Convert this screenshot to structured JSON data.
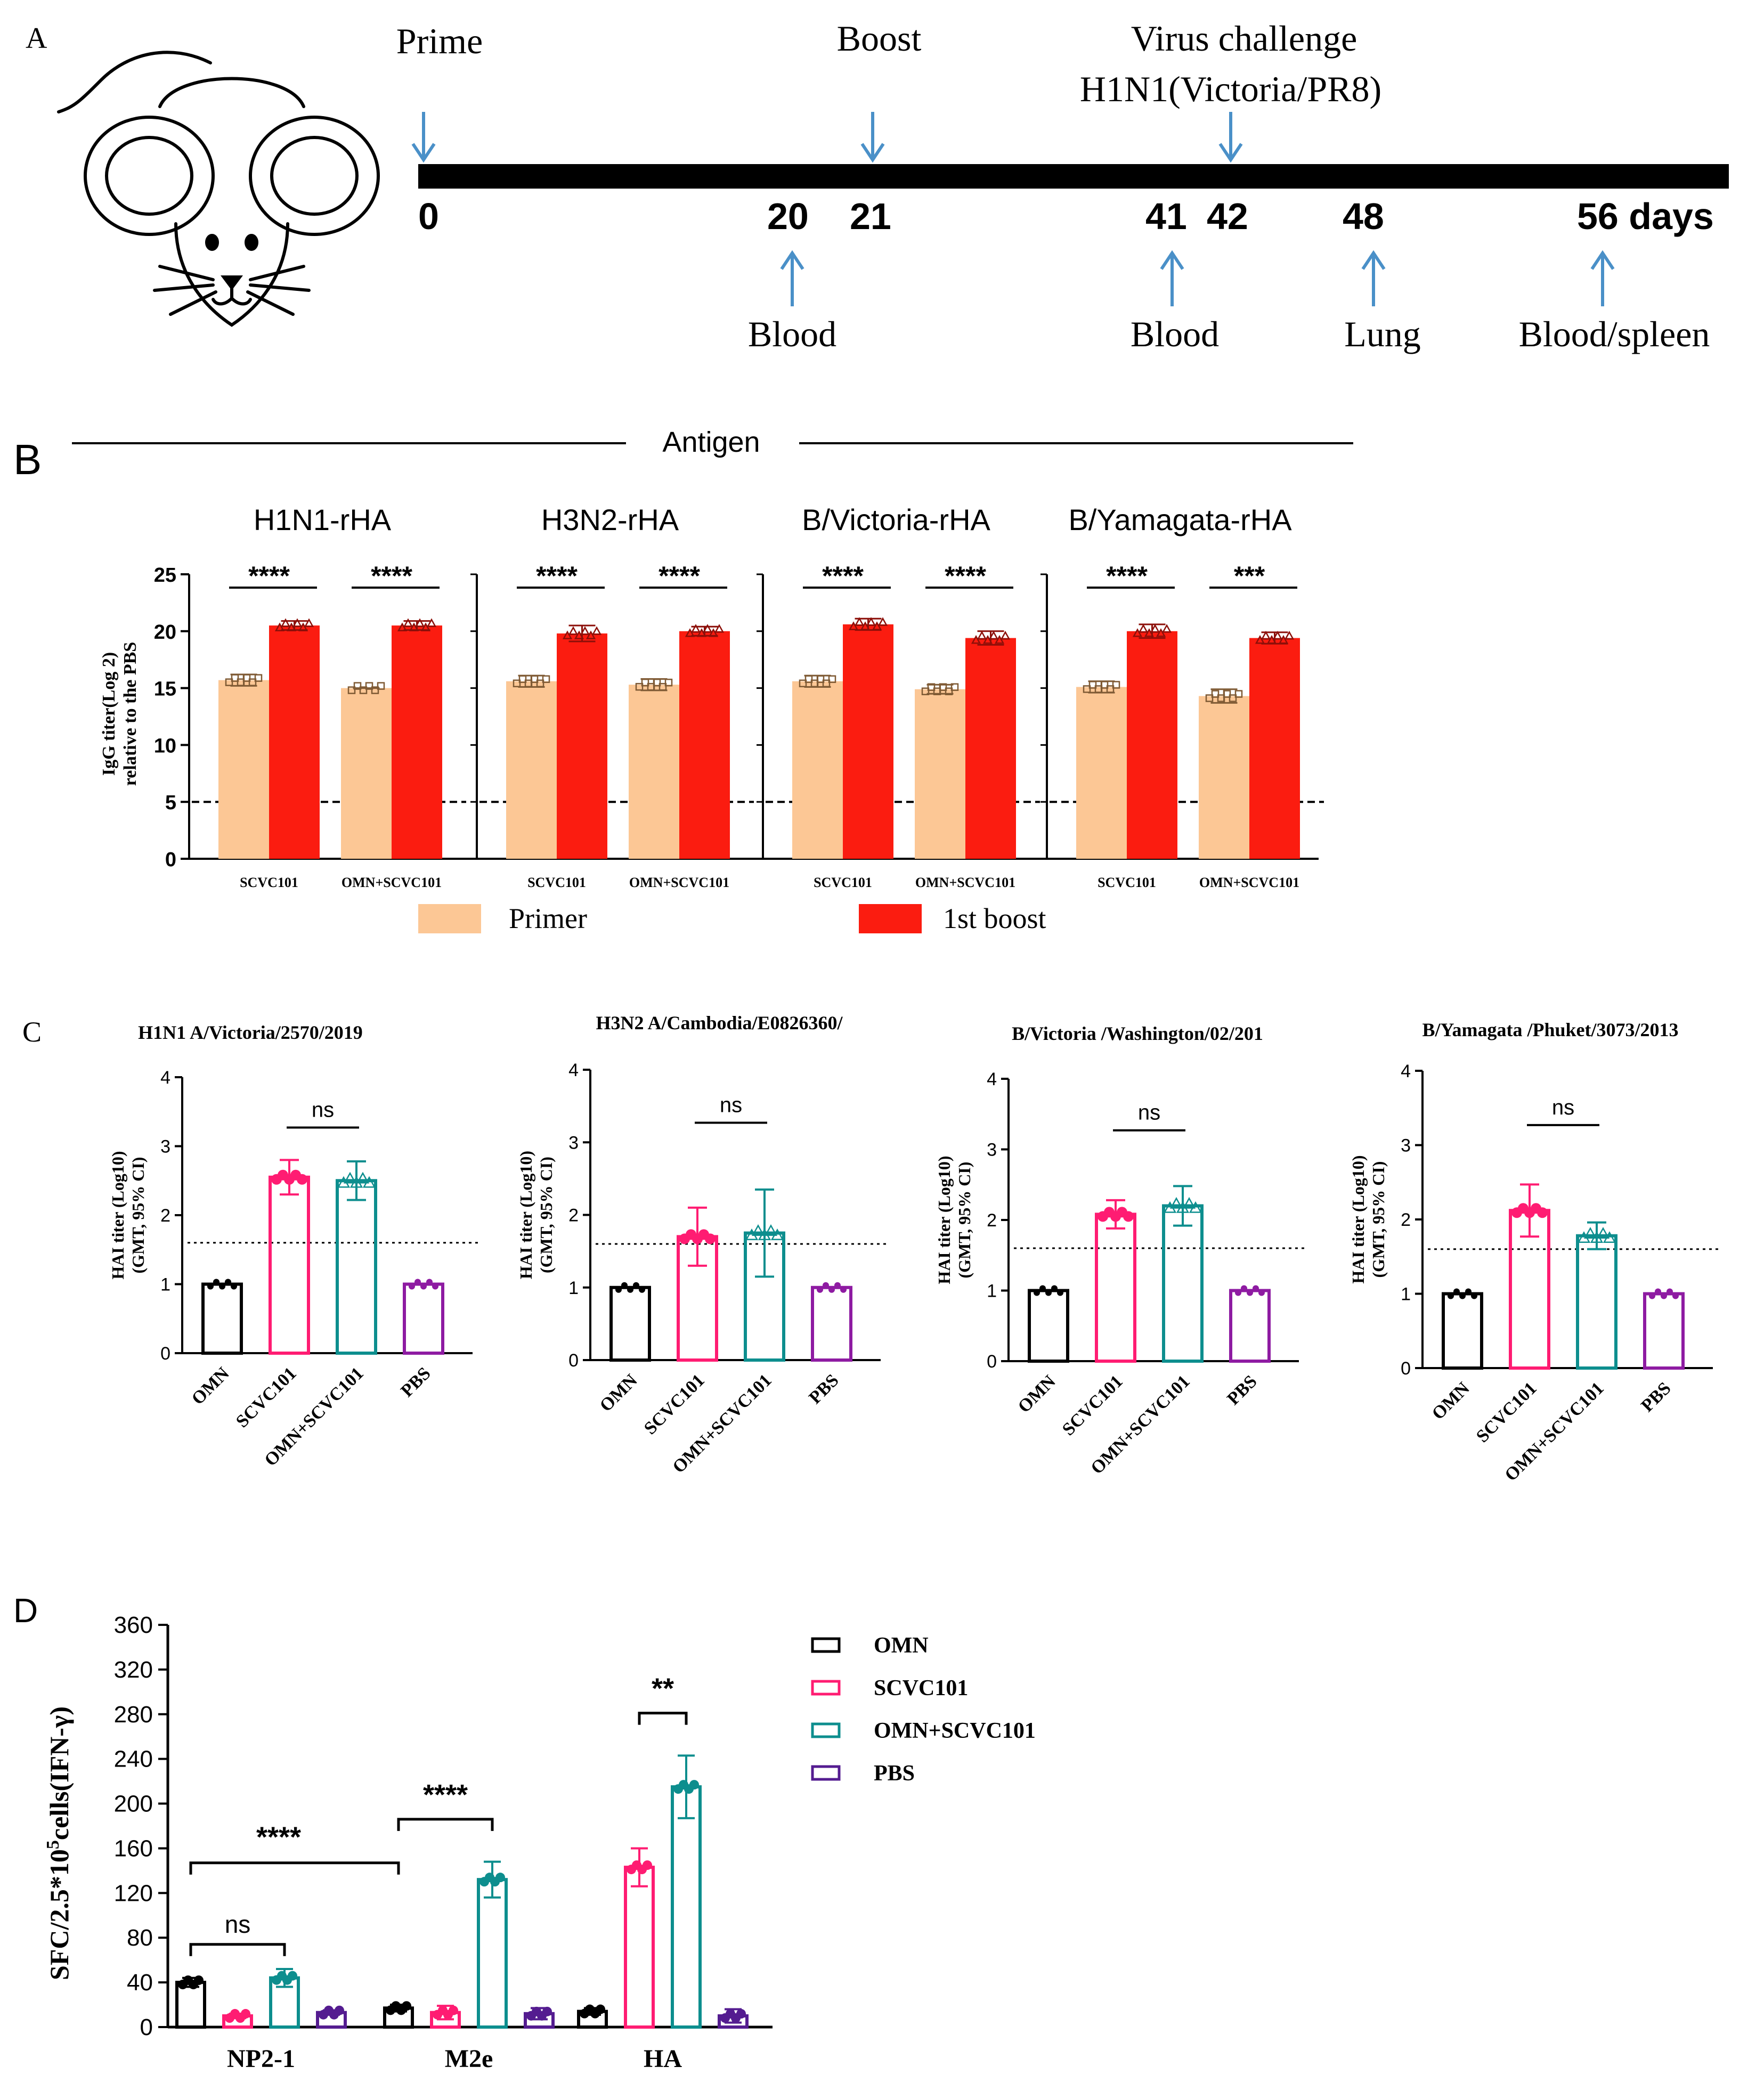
{
  "panel_a": {
    "label": "A",
    "events": {
      "prime": "Prime",
      "boost": "Boost",
      "challenge_line1": "Virus challenge",
      "challenge_line2": "H1N1(Victoria/PR8)"
    },
    "days": [
      "0",
      "20",
      "21",
      "41",
      "42",
      "48",
      "56 days"
    ],
    "samples": {
      "blood1": "Blood",
      "blood2": "Blood",
      "lung": "Lung",
      "blood_spleen": "Blood/spleen"
    }
  },
  "panel_b": {
    "label": "B",
    "header": "Antigen",
    "legend": {
      "primer": "Primer",
      "boost": "1st boost"
    },
    "colors": {
      "primer": "#fcc795",
      "boost": "#fb1c10",
      "primer_pt": "#7f5a34",
      "boost_pt": "#8c0f09"
    }
  },
  "panel_c": {
    "label": "C",
    "colors": {
      "omn": "#000000",
      "scvc": "#ff1c72",
      "combo": "#0d8e8e",
      "pbs": "#8e1ba2"
    }
  },
  "panel_d": {
    "label": "D",
    "legend": [
      "OMN",
      "SCVC101",
      "OMN+SCVC101",
      "PBS"
    ],
    "colors": [
      "#000000",
      "#ff1c72",
      "#0d8e8e",
      "#541c90"
    ]
  },
  "chart_data": [
    {
      "id": "B",
      "type": "bar",
      "ylabel_line1": "IgG titer(Log 2)",
      "ylabel_line2": "relative to the PBS",
      "ylim": [
        0,
        25
      ],
      "yticks": [
        "0",
        "5",
        "10",
        "15",
        "20",
        "25"
      ],
      "reference_line": 5,
      "series_names": [
        "Primer",
        "1st boost"
      ],
      "subplots": [
        {
          "title": "H1N1-rHA",
          "categories": [
            "SCVC101",
            "OMN+SCVC101"
          ],
          "primer": [
            15.7,
            15.0
          ],
          "boost": [
            20.5,
            20.5
          ],
          "primer_err": [
            0.5,
            0.0
          ],
          "boost_err": [
            0.4,
            0.4
          ],
          "stars": [
            "****",
            "****"
          ]
        },
        {
          "title": "H3N2-rHA",
          "categories": [
            "SCVC101",
            "OMN+SCVC101"
          ],
          "primer": [
            15.6,
            15.3
          ],
          "boost": [
            19.8,
            20.0
          ],
          "primer_err": [
            0.5,
            0.5
          ],
          "boost_err": [
            0.7,
            0.4
          ],
          "stars": [
            "****",
            "****"
          ]
        },
        {
          "title": "B/Victoria-rHA",
          "categories": [
            "SCVC101",
            "OMN+SCVC101"
          ],
          "primer": [
            15.6,
            14.9
          ],
          "boost": [
            20.6,
            19.4
          ],
          "primer_err": [
            0.5,
            0.4
          ],
          "boost_err": [
            0.5,
            0.6
          ],
          "stars": [
            "****",
            "****"
          ]
        },
        {
          "title": "B/Yamagata-rHA",
          "categories": [
            "SCVC101",
            "OMN+SCVC101"
          ],
          "primer": [
            15.1,
            14.3
          ],
          "boost": [
            20.0,
            19.4
          ],
          "primer_err": [
            0.5,
            0.6
          ],
          "boost_err": [
            0.6,
            0.5
          ],
          "stars": [
            "****",
            "***"
          ]
        }
      ]
    },
    {
      "id": "C",
      "type": "bar",
      "ylabel_line1": "HAI titer (Log10)",
      "ylabel_line2": "(GMT, 95% CI)",
      "ylim": [
        0,
        4
      ],
      "yticks": [
        "0",
        "1",
        "2",
        "3",
        "4"
      ],
      "categories": [
        "OMN",
        "SCVC101",
        "OMN+SCVC101",
        "PBS"
      ],
      "reference_line": 1.6,
      "subplots": [
        {
          "title": "H1N1 A/Victoria/2570/2019",
          "values": [
            1.0,
            2.55,
            2.5,
            1.0
          ],
          "errors": [
            0,
            0.25,
            0.28,
            0
          ],
          "sig": "ns"
        },
        {
          "title": "H3N2 A/Cambodia/E0826360/",
          "values": [
            1.0,
            1.7,
            1.75,
            1.0
          ],
          "errors": [
            0,
            0.4,
            0.6,
            0
          ],
          "sig": "ns"
        },
        {
          "title": "B/Victoria /Washington/02/201",
          "values": [
            1.0,
            2.08,
            2.2,
            1.0
          ],
          "errors": [
            0,
            0.2,
            0.28,
            0
          ],
          "sig": "ns"
        },
        {
          "title": "B/Yamagata /Phuket/3073/2013",
          "values": [
            1.0,
            2.12,
            1.78,
            1.0
          ],
          "errors": [
            0,
            0.35,
            0.18,
            0
          ],
          "sig": "ns"
        }
      ]
    },
    {
      "id": "D",
      "type": "bar",
      "ylabel": "SFC/2.5*10",
      "ylabel_sup": "5",
      "ylabel_tail": "cells(IFN-γ)",
      "ylim": [
        0,
        360
      ],
      "yticks": [
        "0",
        "40",
        "80",
        "120",
        "160",
        "200",
        "240",
        "280",
        "320",
        "360"
      ],
      "categories": [
        "NP2-1",
        "M2e",
        "HA"
      ],
      "series": [
        {
          "name": "OMN",
          "values": [
            40,
            17,
            14
          ],
          "errors": [
            4,
            3,
            3
          ]
        },
        {
          "name": "SCVC101",
          "values": [
            10,
            13,
            143
          ],
          "errors": [
            2,
            6,
            17
          ]
        },
        {
          "name": "OMN+SCVC101",
          "values": [
            44,
            132,
            215
          ],
          "errors": [
            8,
            16,
            28
          ]
        },
        {
          "name": "PBS",
          "values": [
            13,
            12,
            10
          ],
          "errors": [
            2,
            5,
            6
          ]
        }
      ],
      "annotations": [
        "ns",
        "****",
        "****",
        "**"
      ]
    }
  ]
}
